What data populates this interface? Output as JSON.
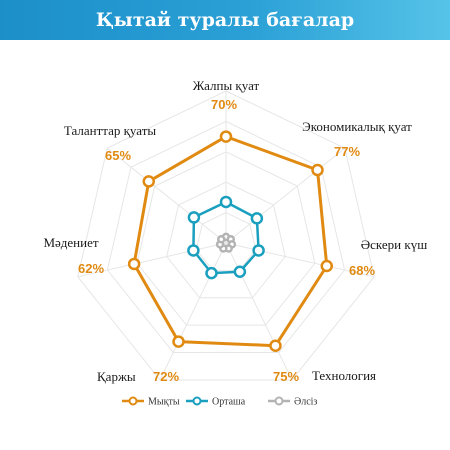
{
  "title": "Қытай туралы бағалар",
  "chart_data": {
    "type": "radar",
    "title": "Қытай туралы бағалар",
    "axes": [
      "Жалпы қуат",
      "Экономикалық қуат",
      "Әскери күш",
      "Технология",
      "Қаржы",
      "Мәдениет",
      "Таланттар қуаты"
    ],
    "series": [
      {
        "name": "Мықты",
        "values": [
          70,
          77,
          68,
          75,
          72,
          62,
          65
        ],
        "color": "#e08a12",
        "labels": [
          "70%",
          "77%",
          "68%",
          "75%",
          "72%",
          "62%",
          "65%"
        ]
      },
      {
        "name": "Орташа",
        "values": [
          27,
          26,
          22,
          21,
          22,
          22,
          27
        ],
        "color": "#1a9fbf"
      },
      {
        "name": "Әлсіз",
        "values": [
          4,
          4,
          4,
          4,
          4,
          4,
          4
        ],
        "color": "#b3b3b3"
      }
    ],
    "rlim": [
      0,
      100
    ],
    "grid": true,
    "legend_position": "bottom"
  }
}
